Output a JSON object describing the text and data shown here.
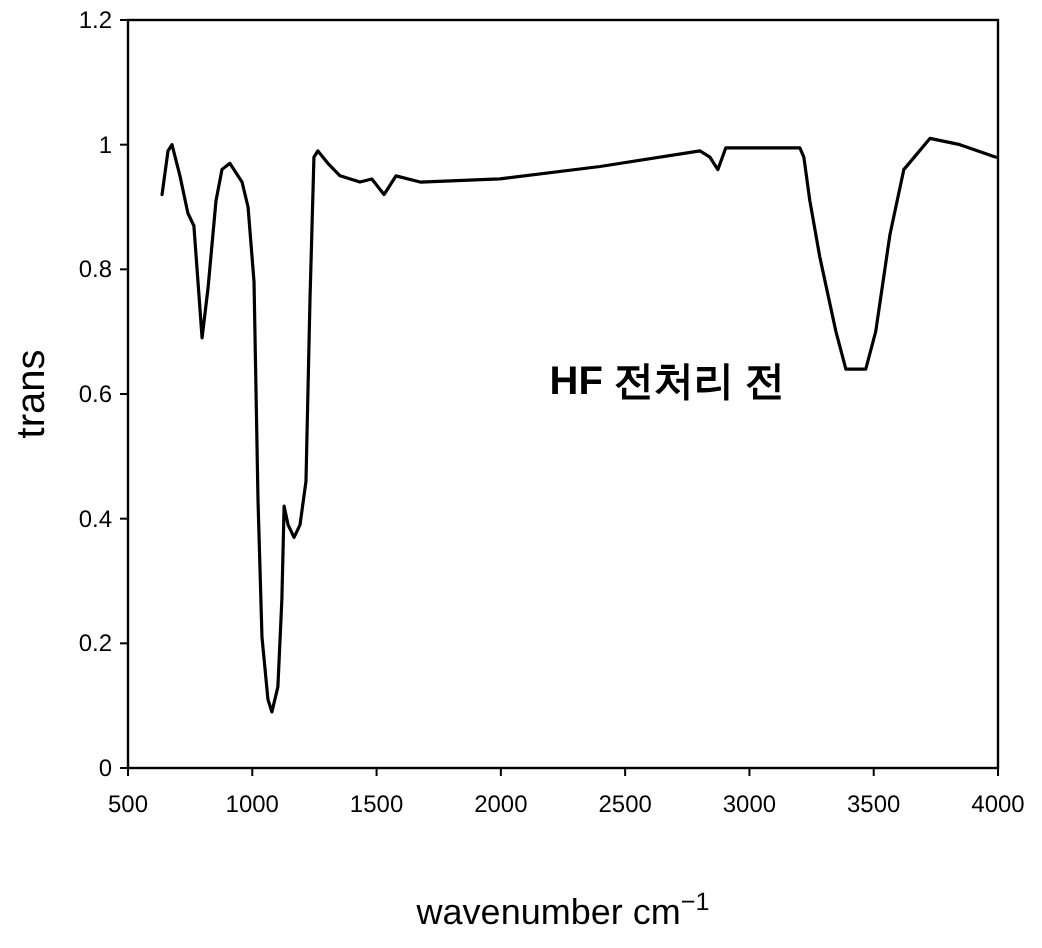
{
  "chart_data": {
    "type": "line",
    "xlabel": "wavenumber cm$^{−1}$",
    "ylabel": "trans",
    "annotations": [
      "HF 전처리 전"
    ],
    "xlim": [
      500,
      4000
    ],
    "ylim": [
      0,
      1.2
    ],
    "xticks": [
      500,
      1000,
      1500,
      2000,
      2500,
      3000,
      3500,
      4000
    ],
    "yticks": [
      0,
      0.2,
      0.4,
      0.6,
      0.8,
      1,
      1.2
    ],
    "grid": false,
    "marker": "none",
    "line_style": "solid",
    "series": [
      {
        "color": "#000000",
        "x": [
          637,
          661,
          677,
          709,
          741,
          765,
          798,
          822,
          854,
          878,
          910,
          959,
          983,
          1007,
          1023,
          1039,
          1063,
          1079,
          1103,
          1119,
          1128,
          1144,
          1168,
          1192,
          1216,
          1232,
          1248,
          1264,
          1304,
          1353,
          1433,
          1481,
          1530,
          1578,
          1675,
          1996,
          2399,
          2801,
          2841,
          2873,
          2905,
          3203,
          3219,
          3243,
          3283,
          3348,
          3388,
          3468,
          3508,
          3565,
          3621,
          3726,
          3847,
          3992
        ],
        "values": [
          0.92,
          0.99,
          1.0,
          0.95,
          0.89,
          0.87,
          0.69,
          0.77,
          0.91,
          0.96,
          0.97,
          0.94,
          0.9,
          0.78,
          0.43,
          0.21,
          0.11,
          0.09,
          0.13,
          0.27,
          0.42,
          0.39,
          0.37,
          0.39,
          0.46,
          0.75,
          0.98,
          0.99,
          0.97,
          0.95,
          0.94,
          0.945,
          0.92,
          0.95,
          0.94,
          0.945,
          0.965,
          0.99,
          0.98,
          0.96,
          0.995,
          0.995,
          0.98,
          0.91,
          0.82,
          0.7,
          0.64,
          0.64,
          0.7,
          0.855,
          0.96,
          1.01,
          1.0,
          0.98
        ]
      }
    ]
  }
}
